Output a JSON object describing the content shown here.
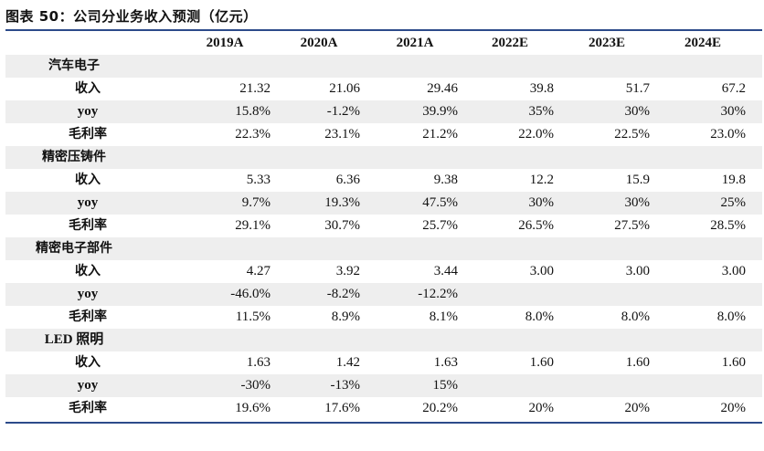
{
  "title": "图表 50：公司分业务收入预测（亿元）",
  "columns": [
    "2019A",
    "2020A",
    "2021A",
    "2022E",
    "2023E",
    "2024E"
  ],
  "rows": [
    {
      "label": "汽车电子",
      "type": "group",
      "values": [
        "",
        "",
        "",
        "",
        "",
        ""
      ]
    },
    {
      "label": "收入",
      "type": "item",
      "values": [
        "21.32",
        "21.06",
        "29.46",
        "39.8",
        "51.7",
        "67.2"
      ]
    },
    {
      "label": "yoy",
      "type": "item",
      "values": [
        "15.8%",
        "-1.2%",
        "39.9%",
        "35%",
        "30%",
        "30%"
      ]
    },
    {
      "label": "毛利率",
      "type": "item",
      "values": [
        "22.3%",
        "23.1%",
        "21.2%",
        "22.0%",
        "22.5%",
        "23.0%"
      ]
    },
    {
      "label": "精密压铸件",
      "type": "group",
      "values": [
        "",
        "",
        "",
        "",
        "",
        ""
      ]
    },
    {
      "label": "收入",
      "type": "item",
      "values": [
        "5.33",
        "6.36",
        "9.38",
        "12.2",
        "15.9",
        "19.8"
      ]
    },
    {
      "label": "yoy",
      "type": "item",
      "values": [
        "9.7%",
        "19.3%",
        "47.5%",
        "30%",
        "30%",
        "25%"
      ]
    },
    {
      "label": "毛利率",
      "type": "item",
      "values": [
        "29.1%",
        "30.7%",
        "25.7%",
        "26.5%",
        "27.5%",
        "28.5%"
      ]
    },
    {
      "label": "精密电子部件",
      "type": "group",
      "values": [
        "",
        "",
        "",
        "",
        "",
        ""
      ]
    },
    {
      "label": "收入",
      "type": "item",
      "values": [
        "4.27",
        "3.92",
        "3.44",
        "3.00",
        "3.00",
        "3.00"
      ]
    },
    {
      "label": "yoy",
      "type": "item",
      "values": [
        "-46.0%",
        "-8.2%",
        "-12.2%",
        "",
        "",
        ""
      ]
    },
    {
      "label": "毛利率",
      "type": "item",
      "values": [
        "11.5%",
        "8.9%",
        "8.1%",
        "8.0%",
        "8.0%",
        "8.0%"
      ]
    },
    {
      "label": "LED 照明",
      "type": "group",
      "values": [
        "",
        "",
        "",
        "",
        "",
        ""
      ]
    },
    {
      "label": "收入",
      "type": "item",
      "values": [
        "1.63",
        "1.42",
        "1.63",
        "1.60",
        "1.60",
        "1.60"
      ]
    },
    {
      "label": "yoy",
      "type": "item",
      "values": [
        "-30%",
        "-13%",
        "15%",
        "",
        "",
        ""
      ]
    },
    {
      "label": "毛利率",
      "type": "item",
      "values": [
        "19.6%",
        "17.6%",
        "20.2%",
        "20%",
        "20%",
        "20%"
      ]
    }
  ],
  "colors": {
    "rule": "#2c4a8a",
    "shade": "#eeeeee"
  }
}
